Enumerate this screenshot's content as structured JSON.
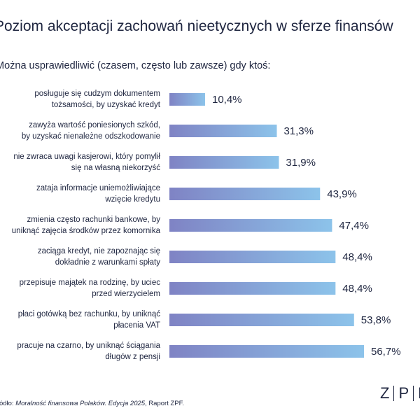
{
  "title": "Poziom akceptacji zachowań nieetycznych w sferze finansów",
  "subtitle": "Można usprawiedliwić (czasem, często lub zawsze) gdy ktoś:",
  "source": {
    "prefix": "Źródło: ",
    "italic": "Moralność finansowa Polaków. Edycja 2025",
    "suffix": ", Raport ZPF."
  },
  "logo": {
    "letters": [
      "Z",
      "P",
      "F"
    ]
  },
  "colors": {
    "bar_start": "#7f83c4",
    "bar_end": "#8cc3ea",
    "text": "#1f2640"
  },
  "chart_data": {
    "type": "bar",
    "orientation": "horizontal",
    "categories": [
      [
        "posługuje się cudzym dokumentem",
        "tożsamości, by uzyskać kredyt"
      ],
      [
        "zawyża wartość poniesionych szkód,",
        "by uzyskać nienależne odszkodowanie"
      ],
      [
        "nie zwraca uwagi kasjerowi, który pomylił",
        "się na własną niekorzyść"
      ],
      [
        "zataja informacje uniemożliwiające",
        "wzięcie kredytu"
      ],
      [
        "zmienia często rachunki bankowe, by",
        "uniknąć zajęcia środków przez komornika"
      ],
      [
        "zaciąga kredyt, nie zapoznając się",
        "dokładnie z warunkami spłaty"
      ],
      [
        "przepisuje majątek na rodzinę, by uciec",
        "przed wierzycielem"
      ],
      [
        "płaci gotówką bez rachunku, by uniknąć",
        "płacenia VAT"
      ],
      [
        "pracuje na czarno, by uniknąć ściągania",
        "długów z pensji"
      ]
    ],
    "values": [
      10.4,
      31.3,
      31.9,
      43.9,
      47.4,
      48.4,
      48.4,
      53.8,
      56.7
    ],
    "value_labels": [
      "10,4%",
      "31,3%",
      "31,9%",
      "43,9%",
      "47,4%",
      "48,4%",
      "48,4%",
      "53,8%",
      "56,7%"
    ],
    "xlim": [
      0,
      56.7
    ],
    "grid": false,
    "legend": "none"
  }
}
